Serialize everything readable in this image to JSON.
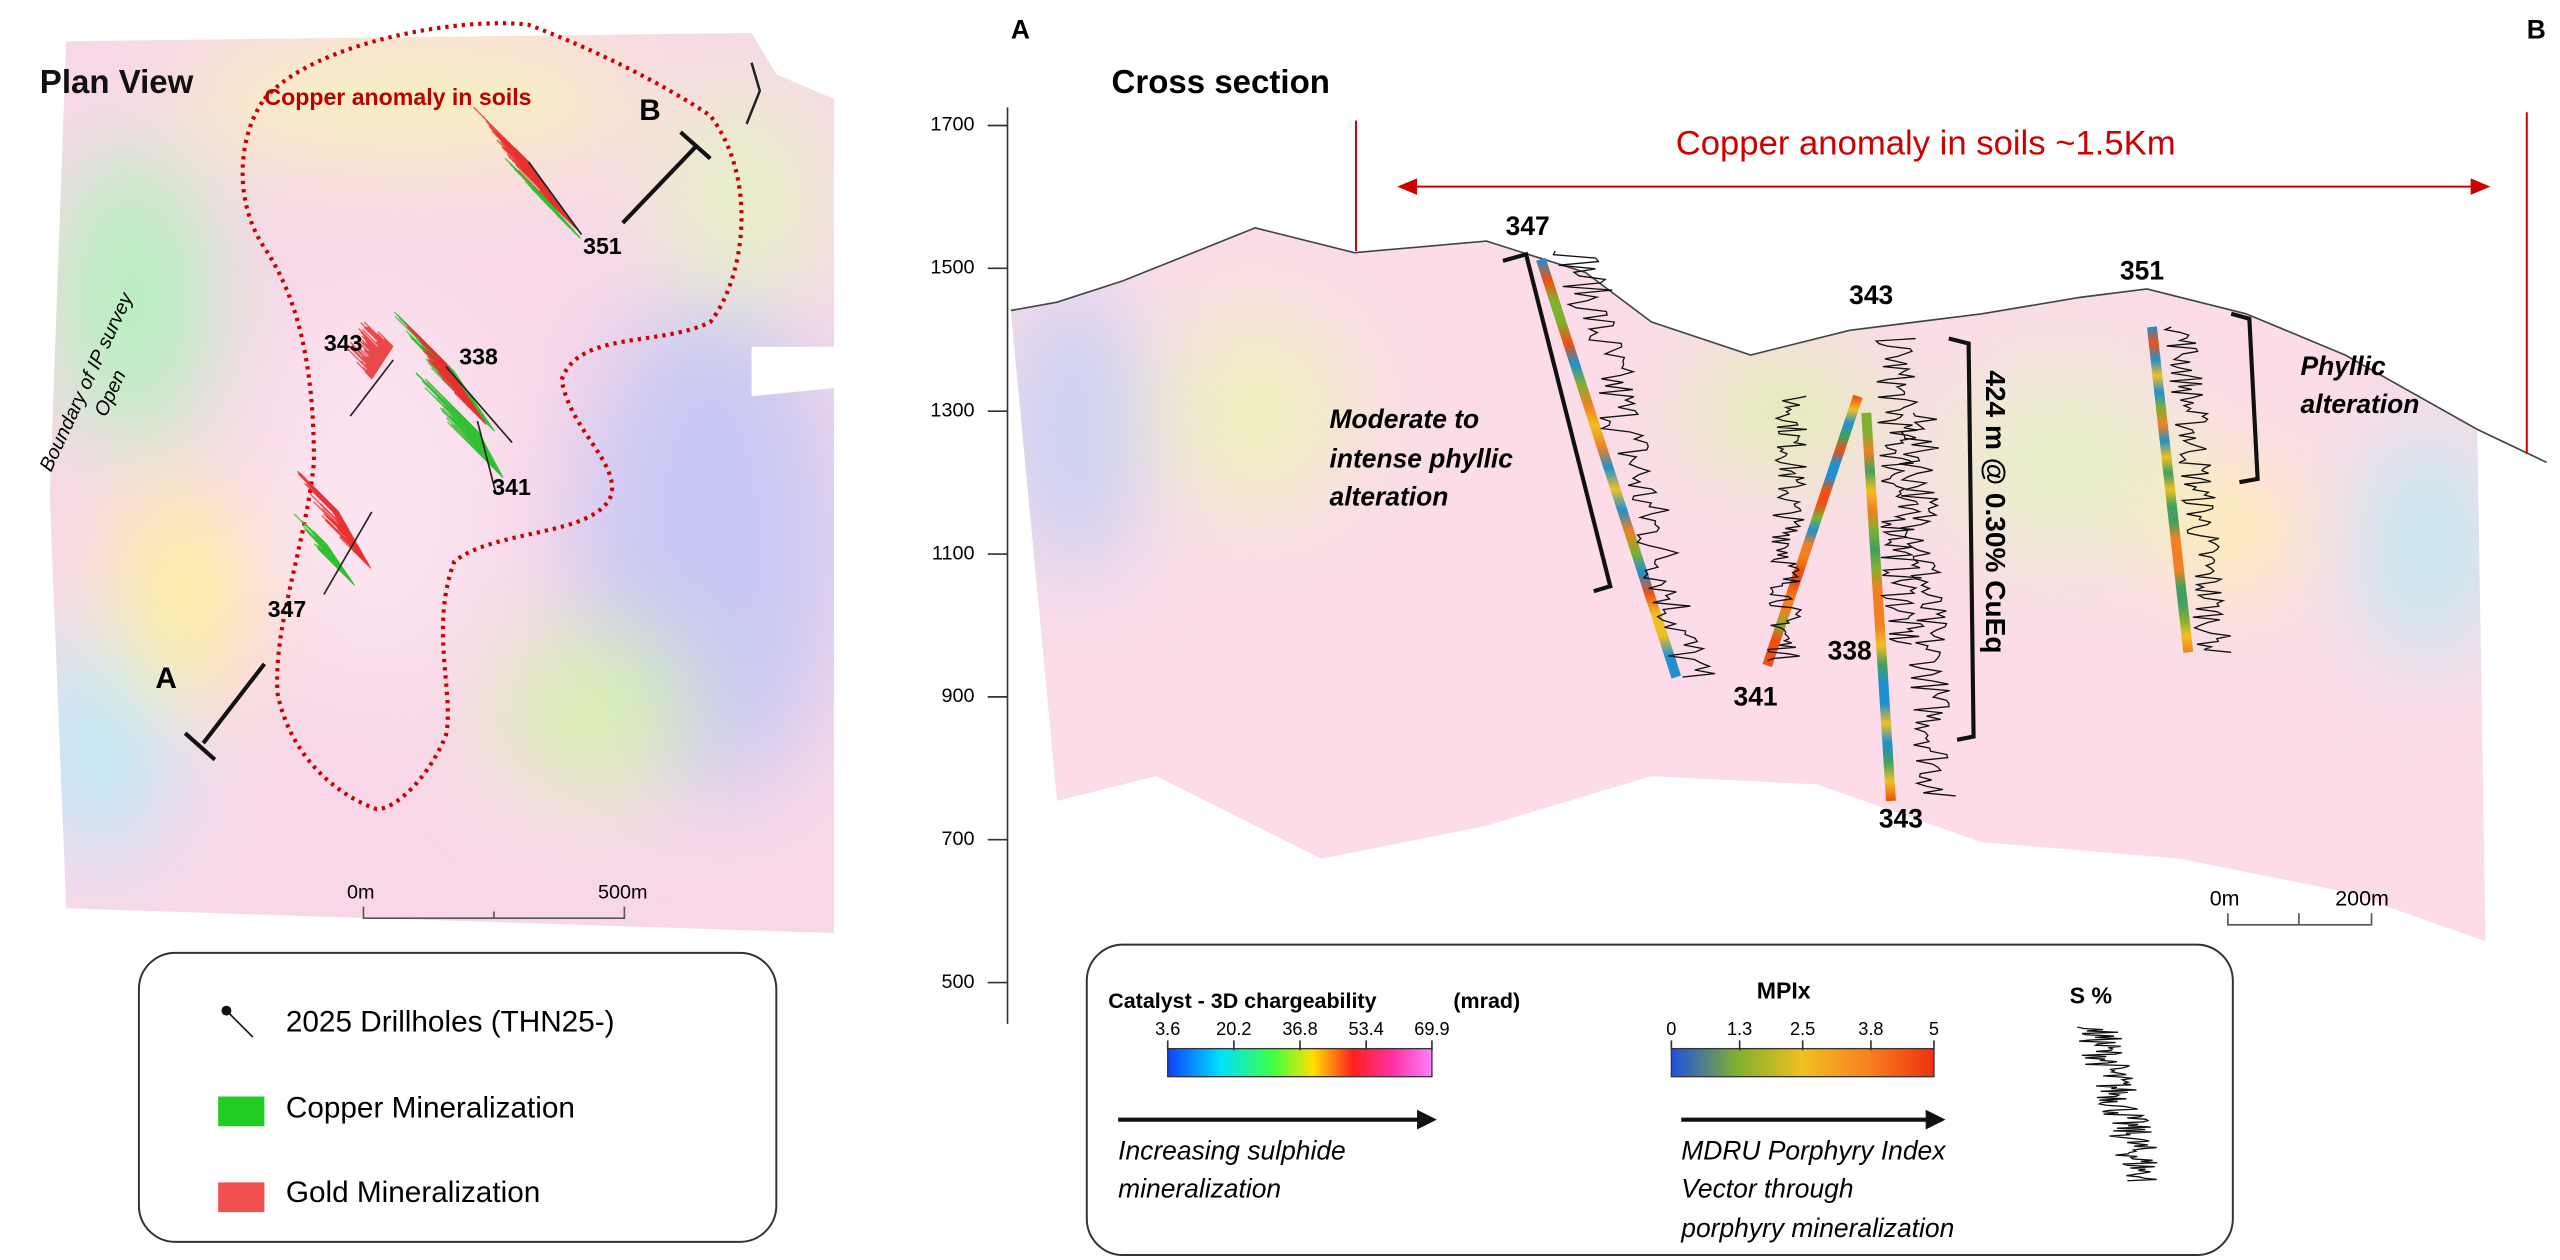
{
  "plan_view": {
    "title": "Plan View",
    "anomaly_label": "Copper anomaly in soils",
    "section_start": "A",
    "section_end": "B",
    "holes": [
      "351",
      "343",
      "338",
      "341",
      "347"
    ],
    "survey_boundary": [
      "Boundary of IP survey",
      "Open"
    ],
    "scale": [
      "0m",
      "500m"
    ]
  },
  "plan_legend": {
    "items": [
      "2025 Drillholes (THN25-)",
      "Copper Mineralization",
      "Gold Mineralization"
    ]
  },
  "cross_section": {
    "start": "A",
    "end": "B",
    "title": "Cross section",
    "elevation_ticks": [
      1700,
      1500,
      1300,
      1100,
      900,
      700,
      500
    ],
    "anomaly_label": "Copper anomaly in soils  ~1.5Km",
    "holes": [
      "347",
      "343",
      "351",
      "341",
      "338",
      "343"
    ],
    "phyllic_label": [
      "Moderate to",
      "intense phyllic",
      "alteration"
    ],
    "phyllic_label_2": [
      "Phyllic",
      "alteration"
    ],
    "intercept": "424 m @ 0.30% CuEq",
    "scale": [
      "0m",
      "200m"
    ]
  },
  "section_legend": {
    "chargeability": {
      "title": "Catalyst - 3D chargeability",
      "unit": "(mrad)",
      "ticks": [
        3.6,
        20.2,
        36.8,
        53.4,
        69.9
      ],
      "caption": [
        "Increasing sulphide",
        "mineralization"
      ]
    },
    "mpix": {
      "title": "MPIx",
      "ticks": [
        0,
        1.3,
        2.5,
        3.8,
        5
      ],
      "caption": [
        "MDRU Porphyry Index",
        "Vector through",
        "porphyry mineralization"
      ]
    },
    "sulphur": {
      "title": "S %"
    }
  }
}
